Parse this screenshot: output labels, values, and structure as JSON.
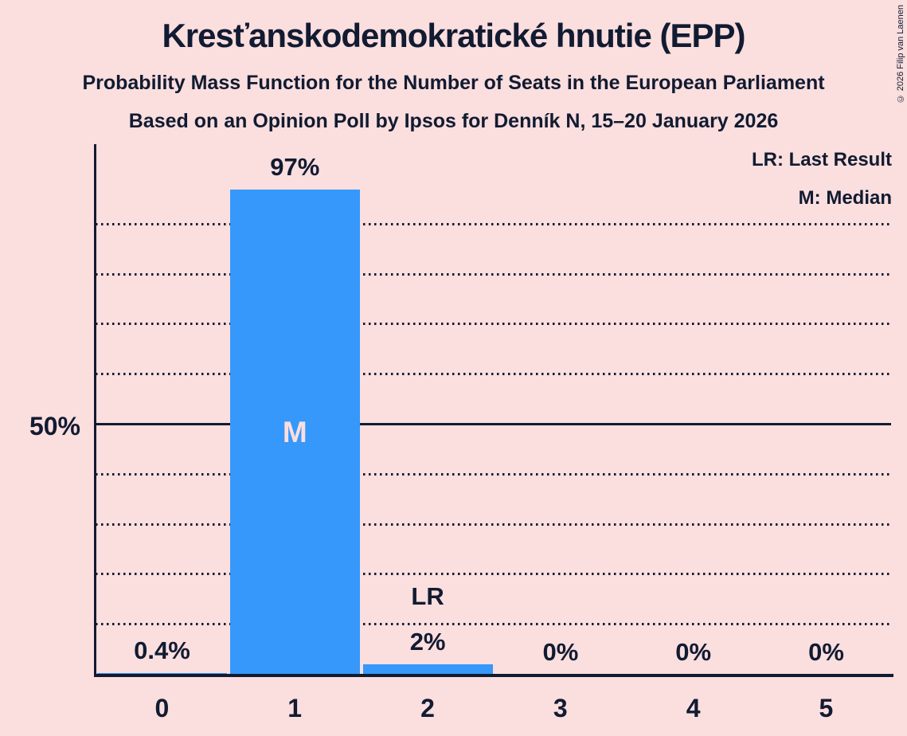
{
  "header": {
    "title": "Kresťanskodemokratické hnutie (EPP)",
    "subtitle1": "Probability Mass Function for the Number of Seats in the European Parliament",
    "subtitle2": "Based on an Opinion Poll by Ipsos for Denník N, 15–20 January 2026"
  },
  "legend": {
    "lr_label": "LR: Last Result",
    "m_label": "M: Median"
  },
  "copyright": "© 2026 Filip van Laenen",
  "colors": {
    "background": "#FBDEDE",
    "bar": "#3598FA",
    "ink": "#111B31",
    "median_text": "#FBDEDE"
  },
  "chart_data": {
    "type": "bar",
    "title": "Kresťanskodemokratické hnutie (EPP)",
    "categories": [
      "0",
      "1",
      "2",
      "3",
      "4",
      "5"
    ],
    "values": [
      0.4,
      97,
      2,
      0,
      0,
      0
    ],
    "bar_labels": [
      "0.4%",
      "97%",
      "2%",
      "0%",
      "0%",
      "0%"
    ],
    "xlabel": "",
    "ylabel": "",
    "ylim": [
      0,
      100
    ],
    "y_axis_label": "50%",
    "dotted_gridlines_pct": [
      10,
      20,
      30,
      40,
      60,
      70,
      80,
      90
    ],
    "solid_gridline_pct": 50,
    "median_bar_index": 1,
    "median_marker": "M",
    "last_result_bar_index": 2,
    "last_result_marker": "LR",
    "grid": "dotted horizontal lines every 10%, solid line at 50%",
    "legend_position": "top-right"
  }
}
